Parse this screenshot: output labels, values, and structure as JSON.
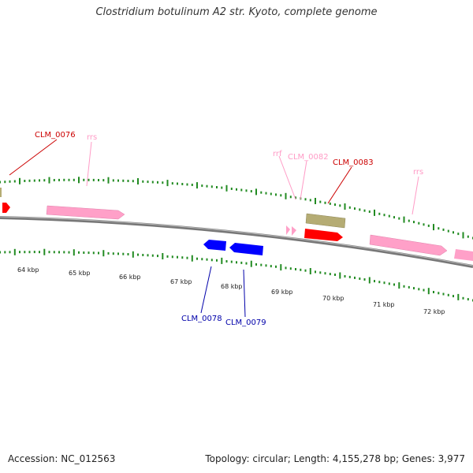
{
  "title": "Clostridium botulinum A2 str. Kyoto, complete genome",
  "footer": {
    "accession": "Accession: NC_012563",
    "summary": "Topology: circular; Length: 4,155,278 bp; Genes: 3,977"
  },
  "colors": {
    "backbone": "#888888",
    "tick": "#228b22",
    "forward_cds": "#ff0000",
    "reverse_cds": "#0000ff",
    "rrna": "#ffa0c8",
    "other": "#b5ac74",
    "label_forward": "#cc0000",
    "label_reverse": "#0000aa",
    "label_rrna": "#ff9bc6"
  },
  "ticks": {
    "labels": [
      "64 kbp",
      "65 kbp",
      "66 kbp",
      "67 kbp",
      "68 kbp",
      "69 kbp",
      "70 kbp",
      "71 kbp",
      "72 kbp"
    ]
  },
  "features": [
    {
      "name": "CLM_0076",
      "type": "forward_cds"
    },
    {
      "name": "rrs",
      "type": "rrna"
    },
    {
      "name": "rrf",
      "type": "rrna"
    },
    {
      "name": "CLM_0082",
      "type": "rrna"
    },
    {
      "name": "CLM_0083",
      "type": "forward_cds"
    },
    {
      "name": "rrs",
      "type": "rrna"
    },
    {
      "name": "CLM_0078",
      "type": "reverse_cds"
    },
    {
      "name": "CLM_0079",
      "type": "reverse_cds"
    }
  ]
}
